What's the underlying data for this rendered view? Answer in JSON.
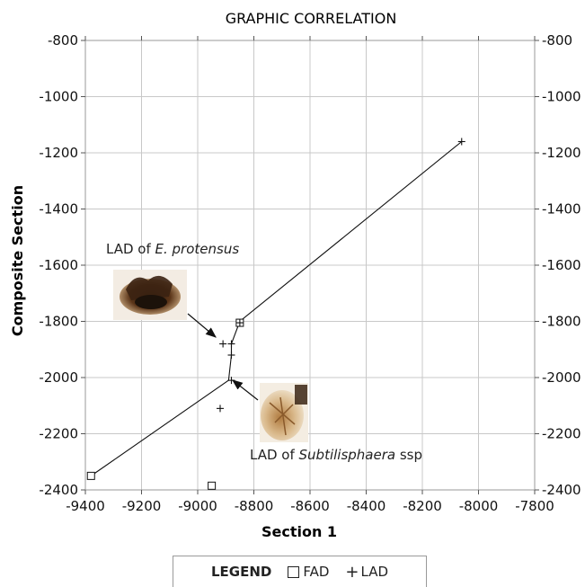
{
  "chart_data": {
    "type": "scatter",
    "title": "GRAPHIC CORRELATION",
    "xlabel": "Section 1",
    "ylabel": "Composite Section",
    "xlim": [
      -9400,
      -7800
    ],
    "ylim": [
      -2400,
      -800
    ],
    "x_ticks": [
      -9400,
      -9200,
      -9000,
      -8800,
      -8600,
      -8400,
      -8200,
      -8000,
      -7800
    ],
    "y_ticks": [
      -800,
      -1000,
      -1200,
      -1400,
      -1600,
      -1800,
      -2000,
      -2200,
      -2400
    ],
    "grid": true,
    "line_of_correlation": {
      "x": [
        -9380,
        -8890,
        -8880,
        -8880,
        -8850,
        -8060
      ],
      "y": [
        -2350,
        -2010,
        -1920,
        -1880,
        -1800,
        -1160
      ]
    },
    "series": [
      {
        "name": "FAD",
        "marker": "square",
        "x": [
          -9380,
          -8950,
          -8850
        ],
        "y": [
          -2350,
          -2385,
          -1805
        ]
      },
      {
        "name": "LAD",
        "marker": "plus",
        "x": [
          -8060,
          -8850,
          -8910,
          -8880,
          -8880,
          -8880,
          -8920
        ],
        "y": [
          -1160,
          -1805,
          -1880,
          -1880,
          -1920,
          -2010,
          -2110
        ]
      }
    ],
    "annotations": [
      {
        "prefix": "LAD of ",
        "taxon": "E. protensus",
        "target": {
          "x": -8880,
          "y": -1880
        }
      },
      {
        "prefix": "LAD of ",
        "taxon": "Subtilisphaera",
        "suffix": " ssp",
        "target": {
          "x": -8885,
          "y": -2010
        }
      }
    ]
  },
  "legend": {
    "title": "LEGEND",
    "fad_label": "FAD",
    "lad_label": "LAD"
  }
}
